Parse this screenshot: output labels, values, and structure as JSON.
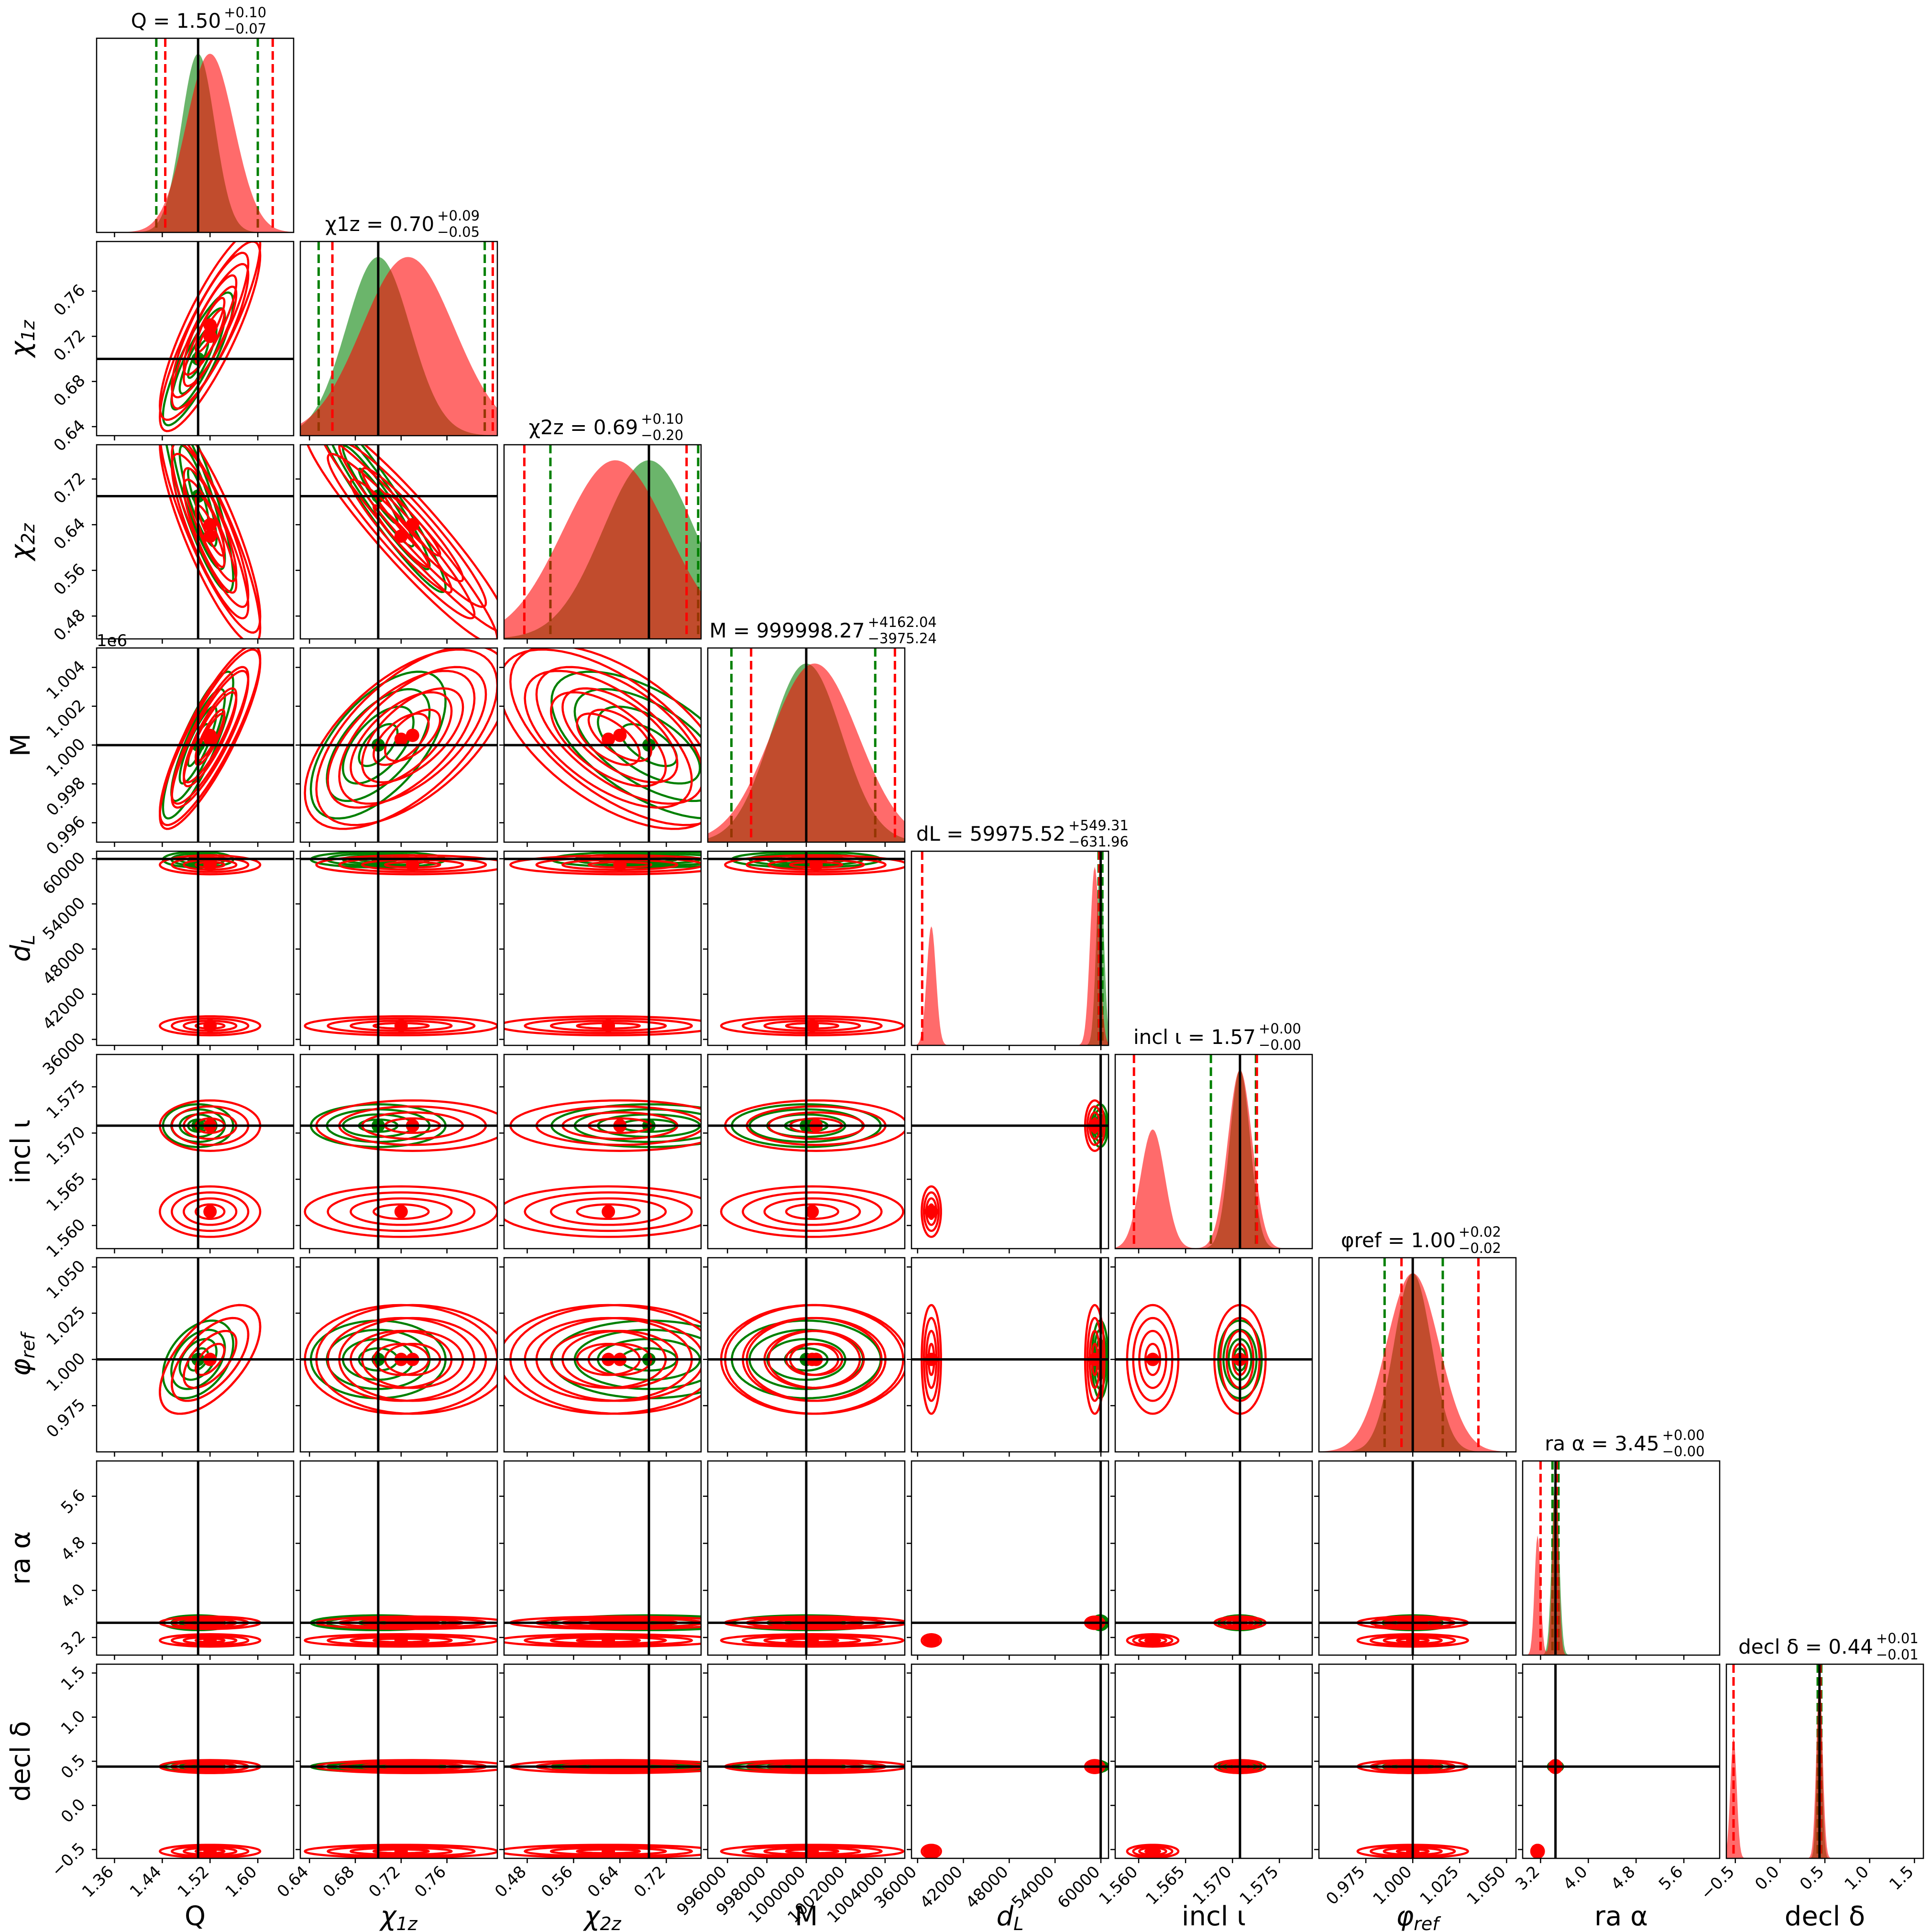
{
  "chart_data": {
    "type": "corner",
    "params": [
      {
        "id": "Q",
        "label": "Q",
        "truth": 1.5,
        "range": [
          1.33,
          1.66
        ],
        "ticks": [
          "1.36",
          "1.44",
          "1.52",
          "1.60"
        ],
        "tick_values": [
          1.36,
          1.44,
          1.52,
          1.6
        ]
      },
      {
        "id": "chi1z",
        "label": "χ1z",
        "label_main": "χ",
        "label_sub": "1z",
        "truth": 0.7,
        "range": [
          0.632,
          0.804
        ],
        "ticks": [
          "0.64",
          "0.68",
          "0.72",
          "0.76"
        ],
        "tick_values": [
          0.64,
          0.68,
          0.72,
          0.76
        ]
      },
      {
        "id": "chi2z",
        "label": "χ2z",
        "label_main": "χ",
        "label_sub": "2z",
        "truth": 0.69,
        "range": [
          0.44,
          0.78
        ],
        "ticks": [
          "0.48",
          "0.56",
          "0.64",
          "0.72"
        ],
        "tick_values": [
          0.48,
          0.56,
          0.64,
          0.72
        ]
      },
      {
        "id": "M",
        "label": "M",
        "truth": 999998.27,
        "range": [
          995000,
          1005000
        ],
        "ticks": [
          "996000",
          "998000",
          "1000000",
          "1002000",
          "1004000"
        ],
        "tick_values": [
          996000,
          998000,
          1000000,
          1002000,
          1004000
        ],
        "y_ticks": [
          "0.996",
          "0.998",
          "1.000",
          "1.002",
          "1.004"
        ],
        "offset_text": "1e6"
      },
      {
        "id": "dL",
        "label": "dL",
        "label_main": "d",
        "label_sub": "L",
        "truth": 59975.52,
        "range": [
          35200,
          61000
        ],
        "ticks": [
          "36000",
          "42000",
          "48000",
          "54000",
          "60000"
        ],
        "tick_values": [
          36000,
          42000,
          48000,
          54000,
          60000
        ]
      },
      {
        "id": "incl",
        "label": "incl ι",
        "truth": 1.5708,
        "range": [
          1.5575,
          1.5785
        ],
        "ticks": [
          "1.560",
          "1.565",
          "1.570",
          "1.575"
        ],
        "tick_values": [
          1.56,
          1.565,
          1.57,
          1.575
        ]
      },
      {
        "id": "phiref",
        "label": "φref",
        "label_main": "φ",
        "label_sub": "ref",
        "truth": 1.0,
        "range": [
          0.95,
          1.055
        ],
        "ticks": [
          "0.975",
          "1.000",
          "1.025",
          "1.050"
        ],
        "tick_values": [
          0.975,
          1.0,
          1.025,
          1.05
        ]
      },
      {
        "id": "ra",
        "label": "ra α",
        "truth": 3.45,
        "range": [
          2.9,
          6.2
        ],
        "ticks": [
          "3.2",
          "4.0",
          "4.8",
          "5.6"
        ],
        "tick_values": [
          3.2,
          4.0,
          4.8,
          5.6
        ]
      },
      {
        "id": "decl",
        "label": "decl δ",
        "truth": 0.44,
        "range": [
          -0.6,
          1.6
        ],
        "ticks": [
          "−0.5",
          "0.0",
          "0.5",
          "1.0",
          "1.5"
        ],
        "tick_values": [
          -0.5,
          0.0,
          0.5,
          1.0,
          1.5
        ]
      }
    ],
    "titles": [
      {
        "param": "Q",
        "name": "Q",
        "value": "1.50",
        "plus": "+0.10",
        "minus": "−0.07"
      },
      {
        "param": "chi1z",
        "name": "χ1z",
        "value": "0.70",
        "plus": "+0.09",
        "minus": "−0.05"
      },
      {
        "param": "chi2z",
        "name": "χ2z",
        "value": "0.69",
        "plus": "+0.10",
        "minus": "−0.20"
      },
      {
        "param": "M",
        "name": "M",
        "value": "999998.27",
        "plus": "+4162.04",
        "minus": "−3975.24"
      },
      {
        "param": "dL",
        "name": "dL",
        "value": "59975.52",
        "plus": "+549.31",
        "minus": "−631.96"
      },
      {
        "param": "incl",
        "name": "incl ι",
        "value": "1.57",
        "plus": "+0.00",
        "minus": "−0.00"
      },
      {
        "param": "phiref",
        "name": "φref",
        "value": "1.00",
        "plus": "+0.02",
        "minus": "−0.02"
      },
      {
        "param": "ra",
        "name": "ra α",
        "value": "3.45",
        "plus": "+0.00",
        "minus": "−0.00"
      },
      {
        "param": "decl",
        "name": "decl δ",
        "value": "0.44",
        "plus": "+0.01",
        "minus": "−0.01"
      }
    ],
    "series": [
      {
        "color": "#008000",
        "modes": [
          [
            1.5,
            0.7,
            0.69,
            1000000,
            59900,
            1.5708,
            1.0,
            3.45,
            0.44
          ]
        ],
        "sigmas": [
          0.028,
          0.028,
          0.08,
          1800,
          500,
          0.0011,
          0.01,
          0.06,
          0.028
        ],
        "rho": {
          "0-1": 0.85,
          "0-2": -0.85,
          "0-3": 0.85,
          "1-2": -0.95,
          "1-3": 0.6,
          "2-3": -0.6,
          "0-6": 0.4
        },
        "quantiles": [
          [
            1.43,
            1.6
          ],
          [
            0.648,
            0.793
          ],
          [
            0.52,
            0.775
          ],
          [
            996200,
            1003500
          ],
          [
            59700,
            60200
          ],
          [
            1.5677,
            1.5725
          ],
          [
            0.985,
            1.016
          ],
          [
            3.4,
            3.5
          ],
          [
            0.42,
            0.46
          ]
        ]
      },
      {
        "color": "#ff0000",
        "modes": [
          [
            1.52,
            0.73,
            0.64,
            1000500,
            59200,
            1.5708,
            1.0,
            3.45,
            0.44
          ],
          [
            1.52,
            0.72,
            0.62,
            1000300,
            37800,
            1.5615,
            1.0,
            3.15,
            -0.52
          ]
        ],
        "mode_weights": [
          0.6,
          0.4
        ],
        "sigmas": [
          0.04,
          0.04,
          0.09,
          2200,
          600,
          0.0013,
          0.014,
          0.05,
          0.035
        ],
        "rho": {
          "0-1": 0.85,
          "0-2": -0.85,
          "0-3": 0.85,
          "1-2": -0.95,
          "1-3": 0.6,
          "2-3": -0.6,
          "0-6": 0.6
        },
        "quantiles": [
          [
            1.445,
            1.625
          ],
          [
            0.66,
            0.8
          ],
          [
            0.475,
            0.755
          ],
          [
            997200,
            1004500
          ],
          [
            36600,
            59800
          ],
          [
            1.5595,
            1.5726
          ],
          [
            0.994,
            1.035
          ],
          [
            3.2,
            3.47
          ],
          [
            -0.52,
            0.45
          ]
        ]
      }
    ],
    "truth_line_color": "#000000",
    "grid": false,
    "legend": "none"
  }
}
